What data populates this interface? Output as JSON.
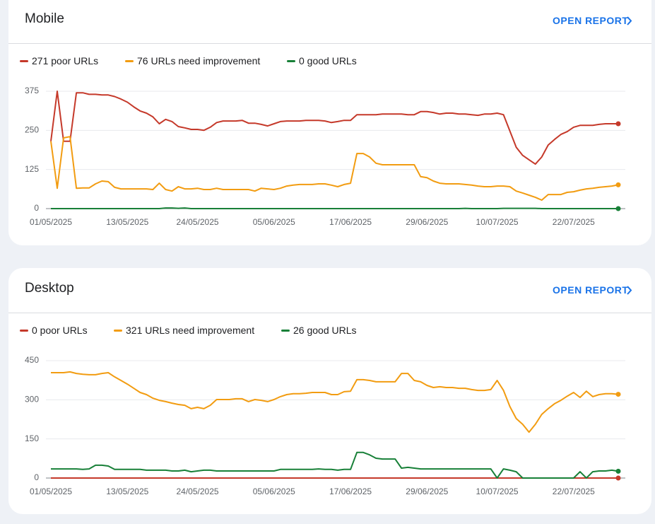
{
  "chart_data": [
    {
      "type": "line",
      "title": "Mobile",
      "action": "OPEN REPORT",
      "categories": [
        "01/05/2025",
        null,
        null,
        null,
        null,
        null,
        null,
        null,
        null,
        null,
        null,
        null,
        "13/05/2025",
        null,
        null,
        null,
        null,
        null,
        null,
        null,
        null,
        null,
        null,
        "24/05/2025",
        null,
        null,
        null,
        null,
        null,
        null,
        null,
        null,
        null,
        null,
        null,
        "05/06/2025",
        null,
        null,
        null,
        null,
        null,
        null,
        null,
        null,
        null,
        null,
        null,
        "17/06/2025",
        null,
        null,
        null,
        null,
        null,
        null,
        null,
        null,
        null,
        null,
        null,
        "29/06/2025",
        null,
        null,
        null,
        null,
        null,
        null,
        null,
        null,
        null,
        null,
        "10/07/2025",
        null,
        null,
        null,
        null,
        null,
        null,
        null,
        null,
        null,
        null,
        null,
        "22/07/2025",
        null,
        null,
        null,
        null,
        null,
        null,
        null
      ],
      "series": [
        {
          "name": "271 poor URLs",
          "color": "#c5392a",
          "values": [
            215,
            375,
            215,
            215,
            370,
            370,
            365,
            365,
            363,
            363,
            358,
            350,
            340,
            325,
            312,
            305,
            293,
            271,
            285,
            278,
            262,
            258,
            253,
            253,
            250,
            260,
            275,
            280,
            280,
            280,
            282,
            273,
            273,
            269,
            264,
            271,
            278,
            280,
            280,
            280,
            282,
            282,
            282,
            280,
            275,
            278,
            282,
            282,
            300,
            300,
            300,
            300,
            302,
            302,
            302,
            302,
            300,
            300,
            310,
            310,
            307,
            302,
            305,
            305,
            302,
            302,
            300,
            298,
            302,
            302,
            305,
            300,
            248,
            196,
            170,
            156,
            142,
            165,
            203,
            221,
            237,
            246,
            260,
            266,
            266,
            266,
            269,
            271,
            271,
            271
          ]
        },
        {
          "name": "76 URLs need improvement",
          "color": "#f29c11",
          "values": [
            215,
            65,
            226,
            230,
            65,
            66,
            66,
            79,
            88,
            86,
            68,
            63,
            63,
            63,
            63,
            63,
            61,
            81,
            61,
            56,
            70,
            63,
            63,
            65,
            61,
            61,
            65,
            61,
            61,
            61,
            61,
            61,
            56,
            65,
            63,
            61,
            65,
            72,
            75,
            77,
            77,
            77,
            79,
            79,
            75,
            70,
            77,
            81,
            176,
            176,
            165,
            145,
            140,
            140,
            140,
            140,
            140,
            140,
            102,
            99,
            88,
            81,
            79,
            79,
            79,
            77,
            75,
            72,
            70,
            70,
            72,
            72,
            70,
            56,
            50,
            43,
            36,
            27,
            45,
            45,
            45,
            52,
            54,
            59,
            63,
            65,
            68,
            70,
            72,
            76
          ]
        },
        {
          "name": "0 good URLs",
          "color": "#188038",
          "values": [
            0,
            0,
            0,
            0,
            0,
            0,
            0,
            0,
            0,
            0,
            0,
            0,
            0,
            0,
            0,
            0,
            0,
            0,
            2,
            2,
            1,
            2,
            0,
            0,
            0,
            0,
            0,
            0,
            0,
            0,
            0,
            0,
            0,
            0,
            0,
            0,
            0,
            0,
            0,
            0,
            0,
            0,
            0,
            0,
            0,
            0,
            0,
            0,
            0,
            0,
            0,
            0,
            0,
            0,
            0,
            0,
            0,
            0,
            0,
            0,
            0,
            0,
            0,
            0,
            0,
            1,
            0,
            0,
            0,
            0,
            0,
            1,
            1,
            1,
            1,
            1,
            1,
            0,
            0,
            0,
            0,
            0,
            0,
            0,
            0,
            0,
            0,
            0,
            0,
            0
          ]
        }
      ],
      "ylim": [
        0,
        375
      ],
      "yticks": [
        0,
        125,
        250,
        375
      ],
      "grid": true
    },
    {
      "type": "line",
      "title": "Desktop",
      "action": "OPEN REPORT",
      "categories": [
        "01/05/2025",
        null,
        null,
        null,
        null,
        null,
        null,
        null,
        null,
        null,
        null,
        null,
        "13/05/2025",
        null,
        null,
        null,
        null,
        null,
        null,
        null,
        null,
        null,
        null,
        "24/05/2025",
        null,
        null,
        null,
        null,
        null,
        null,
        null,
        null,
        null,
        null,
        null,
        "05/06/2025",
        null,
        null,
        null,
        null,
        null,
        null,
        null,
        null,
        null,
        null,
        null,
        "17/06/2025",
        null,
        null,
        null,
        null,
        null,
        null,
        null,
        null,
        null,
        null,
        null,
        "29/06/2025",
        null,
        null,
        null,
        null,
        null,
        null,
        null,
        null,
        null,
        null,
        "10/07/2025",
        null,
        null,
        null,
        null,
        null,
        null,
        null,
        null,
        null,
        null,
        null,
        "22/07/2025",
        null,
        null,
        null,
        null,
        null,
        null,
        null
      ],
      "series": [
        {
          "name": "0 poor URLs",
          "color": "#c5392a",
          "values": [
            0,
            0,
            0,
            0,
            0,
            0,
            0,
            0,
            0,
            0,
            0,
            0,
            0,
            0,
            0,
            0,
            0,
            0,
            0,
            0,
            0,
            0,
            0,
            0,
            0,
            0,
            0,
            0,
            0,
            0,
            0,
            0,
            0,
            0,
            0,
            0,
            0,
            0,
            0,
            0,
            0,
            0,
            0,
            0,
            0,
            0,
            0,
            0,
            0,
            0,
            0,
            0,
            0,
            0,
            0,
            0,
            0,
            0,
            0,
            0,
            0,
            0,
            0,
            0,
            0,
            0,
            0,
            0,
            0,
            0,
            0,
            0,
            0,
            0,
            0,
            0,
            0,
            0,
            0,
            0,
            0,
            0,
            0,
            0,
            0,
            0,
            0,
            0,
            0,
            0
          ]
        },
        {
          "name": "321 URLs need improvement",
          "color": "#f29c11",
          "values": [
            404,
            404,
            404,
            407,
            401,
            398,
            396,
            396,
            401,
            404,
            388,
            374,
            360,
            344,
            328,
            320,
            306,
            298,
            293,
            287,
            282,
            279,
            266,
            271,
            266,
            279,
            301,
            301,
            301,
            304,
            304,
            293,
            301,
            298,
            293,
            301,
            312,
            320,
            323,
            323,
            325,
            328,
            328,
            328,
            320,
            320,
            331,
            333,
            377,
            377,
            374,
            369,
            369,
            369,
            369,
            401,
            401,
            374,
            369,
            355,
            347,
            350,
            347,
            347,
            344,
            344,
            339,
            336,
            336,
            339,
            374,
            336,
            274,
            228,
            206,
            176,
            206,
            244,
            266,
            285,
            298,
            314,
            328,
            309,
            333,
            312,
            320,
            323,
            323,
            321
          ]
        },
        {
          "name": "26 good URLs",
          "color": "#188038",
          "values": [
            35,
            35,
            35,
            35,
            35,
            33,
            35,
            49,
            49,
            46,
            33,
            33,
            33,
            33,
            33,
            30,
            30,
            30,
            30,
            27,
            27,
            30,
            24,
            27,
            30,
            30,
            27,
            27,
            27,
            27,
            27,
            27,
            27,
            27,
            27,
            27,
            33,
            33,
            33,
            33,
            33,
            33,
            35,
            33,
            33,
            30,
            33,
            33,
            98,
            98,
            89,
            76,
            73,
            73,
            73,
            38,
            41,
            38,
            35,
            35,
            35,
            35,
            35,
            35,
            35,
            35,
            35,
            35,
            35,
            35,
            0,
            35,
            30,
            24,
            0,
            0,
            0,
            0,
            0,
            0,
            0,
            0,
            0,
            24,
            0,
            24,
            27,
            27,
            30,
            26
          ]
        }
      ],
      "ylim": [
        0,
        450
      ],
      "yticks": [
        0,
        150,
        300,
        450
      ],
      "grid": true
    }
  ]
}
